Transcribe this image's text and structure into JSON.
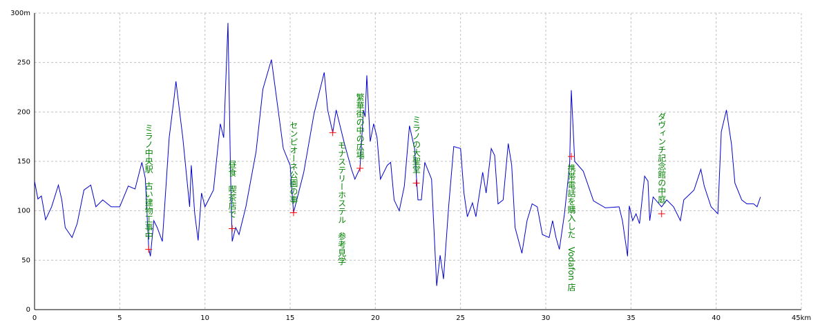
{
  "chart_data": {
    "type": "line",
    "x": [
      0,
      0.2,
      0.4,
      0.65,
      1.0,
      1.4,
      1.6,
      1.8,
      2.2,
      2.5,
      2.9,
      3.3,
      3.6,
      4.0,
      4.5,
      5.0,
      5.5,
      5.9,
      6.3,
      6.5,
      6.7,
      6.8,
      7.0,
      7.2,
      7.5,
      7.9,
      8.2,
      8.3,
      8.5,
      8.7,
      9.1,
      9.2,
      9.4,
      9.6,
      9.8,
      10.0,
      10.5,
      10.9,
      11.1,
      11.35,
      11.5,
      11.6,
      11.8,
      12.0,
      12.4,
      13.0,
      13.4,
      13.9,
      14.6,
      15.0,
      15.2,
      15.8,
      16.4,
      17.0,
      17.2,
      17.5,
      17.7,
      18.2,
      18.6,
      18.8,
      19.1,
      19.3,
      19.4,
      19.5,
      19.7,
      19.9,
      20.1,
      20.3,
      20.7,
      20.9,
      21.1,
      21.4,
      21.7,
      22.0,
      22.3,
      22.5,
      22.7,
      22.9,
      23.3,
      23.6,
      23.8,
      24.0,
      24.3,
      24.6,
      25.0,
      25.2,
      25.4,
      25.7,
      25.9,
      26.3,
      26.5,
      26.8,
      27.0,
      27.2,
      27.5,
      27.8,
      28.0,
      28.2,
      28.6,
      28.9,
      29.2,
      29.5,
      29.8,
      30.2,
      30.4,
      30.6,
      30.8,
      31.1,
      31.4,
      31.5,
      31.7,
      32.2,
      32.8,
      33.5,
      34.3,
      34.5,
      34.8,
      34.9,
      35.1,
      35.3,
      35.5,
      35.8,
      36.0,
      36.1,
      36.3,
      36.8,
      37.1,
      37.5,
      37.9,
      38.1,
      38.7,
      39.1,
      39.3,
      39.7,
      40.1,
      40.3,
      40.6,
      40.9,
      41.1,
      41.5,
      41.8,
      42.2,
      42.4,
      42.6
    ],
    "values": [
      130,
      112,
      115,
      91,
      104,
      126,
      111,
      83,
      73,
      87,
      121,
      126,
      104,
      111,
      104,
      104,
      125,
      122,
      149,
      133,
      62,
      54,
      90,
      83,
      69,
      174,
      216,
      231,
      202,
      174,
      104,
      146,
      97,
      70,
      118,
      104,
      121,
      188,
      174,
      290,
      139,
      69,
      83,
      76,
      104,
      160,
      223,
      253,
      163,
      146,
      98,
      139,
      198,
      240,
      202,
      179,
      202,
      167,
      142,
      132,
      143,
      202,
      195,
      237,
      170,
      188,
      174,
      132,
      146,
      149,
      111,
      100,
      125,
      186,
      163,
      111,
      111,
      149,
      132,
      24,
      55,
      31,
      104,
      165,
      163,
      118,
      94,
      108,
      94,
      139,
      118,
      163,
      156,
      107,
      111,
      168,
      146,
      83,
      57,
      90,
      107,
      104,
      76,
      73,
      90,
      73,
      61,
      97,
      146,
      222,
      150,
      140,
      110,
      103,
      104,
      90,
      54,
      105,
      90,
      97,
      87,
      135,
      130,
      90,
      114,
      104,
      111,
      104,
      90,
      111,
      121,
      142,
      125,
      104,
      97,
      180,
      202,
      167,
      128,
      111,
      107,
      107,
      104,
      114
    ],
    "color": "#0000cc",
    "xlim": [
      0,
      45
    ],
    "ylim": [
      0,
      300
    ],
    "xticks": [
      0,
      5,
      10,
      15,
      20,
      25,
      30,
      35,
      40,
      {
        "value": 45,
        "label": "45km"
      }
    ],
    "yticks": [
      0,
      50,
      100,
      150,
      200,
      250,
      {
        "value": 300,
        "label": "300m"
      }
    ],
    "grid": true,
    "annotations": [
      {
        "text": "ミラノ中央駅　古い建物工事中",
        "x": 6.7,
        "y": 61
      },
      {
        "text": "昼食　喫茶店で",
        "x": 11.6,
        "y": 82
      },
      {
        "text": "センピオーネ公園の事",
        "x": 15.2,
        "y": 98
      },
      {
        "text": "モナステリーホステル　参考見学",
        "x": 17.5,
        "y": 179
      },
      {
        "text": "繁華街の中の広場",
        "x": 19.1,
        "y": 143
      },
      {
        "text": "ミラノの大聖堂",
        "x": 22.4,
        "y": 128
      },
      {
        "text": "携帯電話を購入した　Vodafon 店",
        "x": 31.5,
        "y": 155
      },
      {
        "text": "ダヴィンチ記念館の中庭",
        "x": 36.8,
        "y": 97
      }
    ],
    "annotation_color": "#008000",
    "marker_color": "#ff0000"
  }
}
